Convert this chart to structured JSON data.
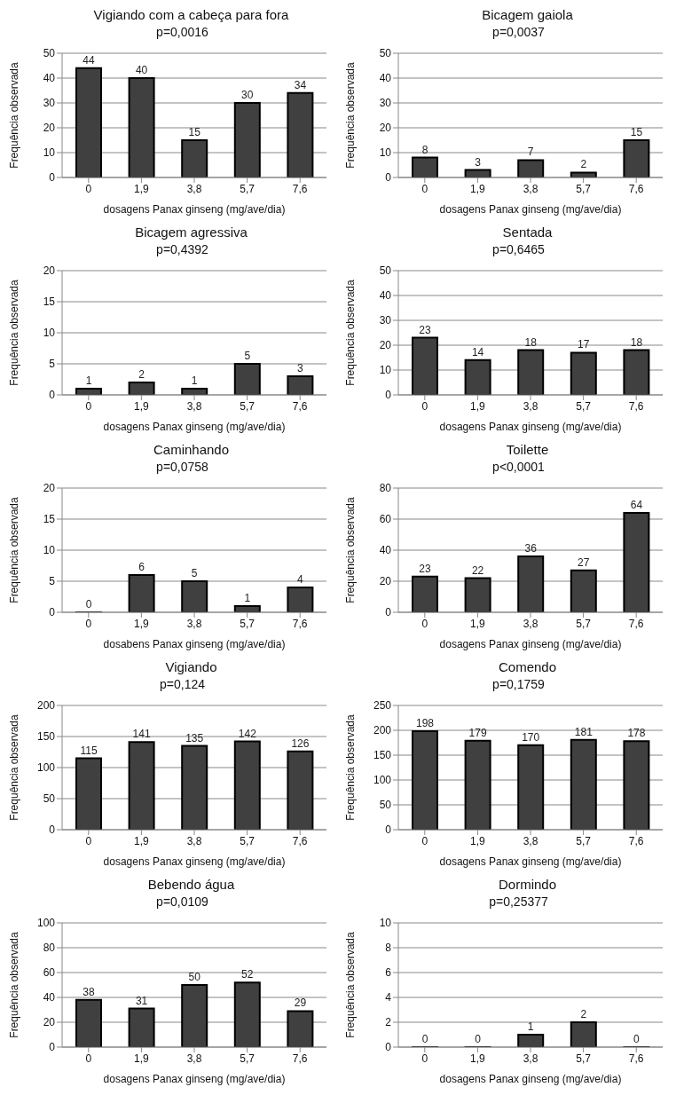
{
  "chart_data": [
    {
      "type": "bar",
      "title": "Vigiando com a cabeça para fora",
      "xlabel": "dosagens Panax ginseng (mg/ave/dia)",
      "ylabel": "Frequência observada",
      "annotations": [
        "p=0,0016"
      ],
      "categories": [
        "0",
        "1,9",
        "3,8",
        "5,7",
        "7,6"
      ],
      "values": [
        44,
        40,
        15,
        30,
        34
      ],
      "color": "#404040",
      "ylim": [
        0,
        50
      ],
      "yticks": [
        0,
        10,
        20,
        30,
        40,
        50
      ],
      "grid": "y",
      "data_labels": true
    },
    {
      "type": "bar",
      "title": "Bicagem gaiola",
      "xlabel": "dosagens Panax ginseng (mg/ave/dia)",
      "ylabel": "Frequência observada",
      "annotations": [
        "p=0,0037"
      ],
      "categories": [
        "0",
        "1,9",
        "3,8",
        "5,7",
        "7,6"
      ],
      "values": [
        8,
        3,
        7,
        2,
        15
      ],
      "color": "#404040",
      "ylim": [
        0,
        50
      ],
      "yticks": [
        0,
        10,
        20,
        30,
        40,
        50
      ],
      "grid": "y",
      "data_labels": true
    },
    {
      "type": "bar",
      "title": "Bicagem agressiva",
      "xlabel": "dosagens Panax ginseng (mg/ave/dia)",
      "ylabel": "Frequência observada",
      "annotations": [
        "p=0,4392"
      ],
      "categories": [
        "0",
        "1,9",
        "3,8",
        "5,7",
        "7,6"
      ],
      "values": [
        1,
        2,
        1,
        5,
        3
      ],
      "color": "#404040",
      "ylim": [
        0,
        20
      ],
      "yticks": [
        0,
        5,
        10,
        15,
        20
      ],
      "grid": "y",
      "data_labels": true
    },
    {
      "type": "bar",
      "title": "Sentada",
      "xlabel": "dosagens Panax ginseng (mg/ave/dia)",
      "ylabel": "Frequência observada",
      "annotations": [
        "p=0,6465"
      ],
      "categories": [
        "0",
        "1,9",
        "3,8",
        "5,7",
        "7,6"
      ],
      "values": [
        23,
        14,
        18,
        17,
        18
      ],
      "color": "#404040",
      "ylim": [
        0,
        50
      ],
      "yticks": [
        0,
        10,
        20,
        30,
        40,
        50
      ],
      "grid": "y",
      "data_labels": true
    },
    {
      "type": "bar",
      "title": "Caminhando",
      "xlabel": "dosabens Panax ginseng (mg/ave/dia)",
      "ylabel": "Frequência observada",
      "annotations": [
        "p=0,0758"
      ],
      "categories": [
        "0",
        "1,9",
        "3,8",
        "5,7",
        "7,6"
      ],
      "values": [
        0,
        6,
        5,
        1,
        4
      ],
      "color": "#404040",
      "ylim": [
        0,
        20
      ],
      "yticks": [
        0,
        5,
        10,
        15,
        20
      ],
      "grid": "y",
      "data_labels": true
    },
    {
      "type": "bar",
      "title": "Toilette",
      "xlabel": "dosagens Panax ginseng (mg/ave/dia)",
      "ylabel": "Frequência observada",
      "annotations": [
        "p<0,0001"
      ],
      "categories": [
        "0",
        "1,9",
        "3,8",
        "5,7",
        "7,6"
      ],
      "values": [
        23,
        22,
        36,
        27,
        64
      ],
      "color": "#404040",
      "ylim": [
        0,
        80
      ],
      "yticks": [
        0,
        20,
        40,
        60,
        80
      ],
      "grid": "y",
      "data_labels": true
    },
    {
      "type": "bar",
      "title": "Vigiando",
      "xlabel": "dosagens Panax ginseng (mg/ave/dia)",
      "ylabel": "Frequência observada",
      "annotations": [
        "p=0,124"
      ],
      "categories": [
        "0",
        "1,9",
        "3,8",
        "5,7",
        "7,6"
      ],
      "values": [
        115,
        141,
        135,
        142,
        126
      ],
      "color": "#404040",
      "ylim": [
        0,
        200
      ],
      "yticks": [
        0,
        50,
        100,
        150,
        200
      ],
      "grid": "y",
      "data_labels": true
    },
    {
      "type": "bar",
      "title": "Comendo",
      "xlabel": "dosagens Panax ginseng (mg/ave/dia)",
      "ylabel": "Frequência observada",
      "annotations": [
        "p=0,1759"
      ],
      "categories": [
        "0",
        "1,9",
        "3,8",
        "5,7",
        "7,6"
      ],
      "values": [
        198,
        179,
        170,
        181,
        178
      ],
      "color": "#404040",
      "ylim": [
        0,
        250
      ],
      "yticks": [
        0,
        50,
        100,
        150,
        200,
        250
      ],
      "grid": "y",
      "data_labels": true
    },
    {
      "type": "bar",
      "title": "Bebendo água",
      "xlabel": "dosagens Panax ginseng (mg/ave/dia)",
      "ylabel": "Frequência observada",
      "annotations": [
        "p=0,0109"
      ],
      "categories": [
        "0",
        "1,9",
        "3,8",
        "5,7",
        "7,6"
      ],
      "values": [
        38,
        31,
        50,
        52,
        29
      ],
      "color": "#404040",
      "ylim": [
        0,
        100
      ],
      "yticks": [
        0,
        20,
        40,
        60,
        80,
        100
      ],
      "grid": "y",
      "data_labels": true
    },
    {
      "type": "bar",
      "title": "Dormindo",
      "xlabel": "dosagens Panax ginseng (mg/ave/dia)",
      "ylabel": "Frequência observada",
      "annotations": [
        "p=0,25377"
      ],
      "categories": [
        "0",
        "1,9",
        "3,8",
        "5,7",
        "7,6"
      ],
      "values": [
        0,
        0,
        1,
        2,
        0
      ],
      "color": "#404040",
      "ylim": [
        0,
        10
      ],
      "yticks": [
        0,
        2,
        4,
        6,
        8,
        10
      ],
      "grid": "y",
      "data_labels": true
    }
  ]
}
